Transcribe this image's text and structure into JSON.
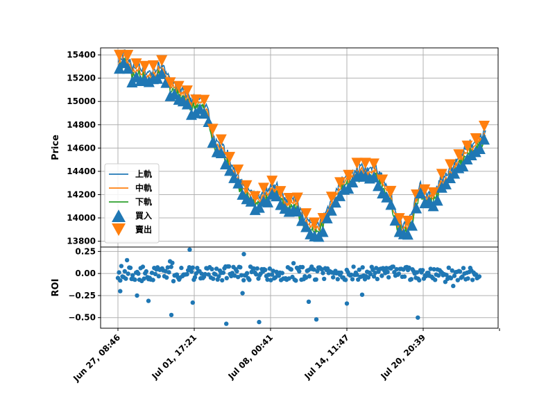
{
  "chart_data": {
    "type": "line",
    "shared_x_ticks": [
      "Jun 27, 08:46",
      "Jul 01, 17:21",
      "Jul 08, 00:41",
      "Jul 14, 11:47",
      "Jul 20, 20:39",
      ""
    ],
    "price_panel": {
      "ylabel": "Price",
      "ylim": [
        13750,
        15460
      ],
      "yticks": [
        13800,
        14000,
        14200,
        14400,
        14600,
        14800,
        15000,
        15200,
        15400
      ],
      "grid": true,
      "legend": {
        "placement": "lower-left",
        "entries": [
          "上軌",
          "中軌",
          "下軌",
          "買入",
          "賣出"
        ]
      },
      "series": [
        {
          "name": "上軌",
          "color": "#1f77b4",
          "role": "upper_band"
        },
        {
          "name": "中軌",
          "color": "#ff7f0e",
          "role": "middle_band"
        },
        {
          "name": "下軌",
          "color": "#2ca02c",
          "role": "lower_band"
        }
      ],
      "markers": [
        {
          "name": "買入",
          "color": "#1f77b4",
          "shape": "triangle-up"
        },
        {
          "name": "賣出",
          "color": "#ff7f0e",
          "shape": "triangle-down"
        }
      ],
      "price_path": {
        "x": [
          0,
          1,
          2,
          3,
          4,
          5,
          6,
          7,
          8,
          9,
          10,
          11,
          12,
          13,
          14,
          15,
          16,
          17,
          18,
          19,
          20,
          21,
          22,
          23,
          24,
          25,
          26,
          27,
          28,
          29,
          30,
          31,
          32,
          33,
          34,
          35,
          36,
          37,
          38,
          39,
          40,
          41,
          42,
          43,
          44,
          45,
          46,
          47,
          48,
          49,
          50
        ],
        "y": [
          15300,
          15380,
          15250,
          15270,
          15200,
          15230,
          15300,
          15150,
          15100,
          15050,
          14980,
          15000,
          14950,
          14650,
          14600,
          14500,
          14350,
          14250,
          14200,
          14150,
          14180,
          14250,
          14200,
          14100,
          14150,
          14000,
          13950,
          13900,
          13980,
          14100,
          14250,
          14300,
          14350,
          14400,
          14380,
          14420,
          14300,
          14200,
          13950,
          13900,
          14000,
          14250,
          14150,
          14200,
          14300,
          14350,
          14450,
          14550,
          14600,
          14650,
          14700
        ]
      }
    },
    "roi_panel": {
      "ylabel": "ROI",
      "ylim": [
        -0.62,
        0.3
      ],
      "yticks": [
        0.25,
        0.0,
        -0.25,
        -0.5
      ],
      "ytick_labels": [
        "0.25",
        "0.00",
        "−0.25",
        "−0.50"
      ],
      "grid": true,
      "type": "scatter",
      "color": "#1f77b4",
      "notable_points": [
        {
          "x": 0.94,
          "y": 0.27
        },
        {
          "x": 1.42,
          "y": -0.57
        },
        {
          "x": 1.85,
          "y": -0.55
        },
        {
          "x": 2.6,
          "y": -0.52
        },
        {
          "x": 3.93,
          "y": -0.5
        },
        {
          "x": 0.7,
          "y": -0.47
        },
        {
          "x": 1.65,
          "y": 0.22
        },
        {
          "x": 0.03,
          "y": -0.2
        },
        {
          "x": 0.25,
          "y": -0.25
        },
        {
          "x": 0.4,
          "y": -0.31
        },
        {
          "x": 0.98,
          "y": -0.33
        },
        {
          "x": 2.5,
          "y": -0.32
        },
        {
          "x": 3.0,
          "y": -0.34
        },
        {
          "x": 3.2,
          "y": -0.24
        }
      ]
    }
  }
}
